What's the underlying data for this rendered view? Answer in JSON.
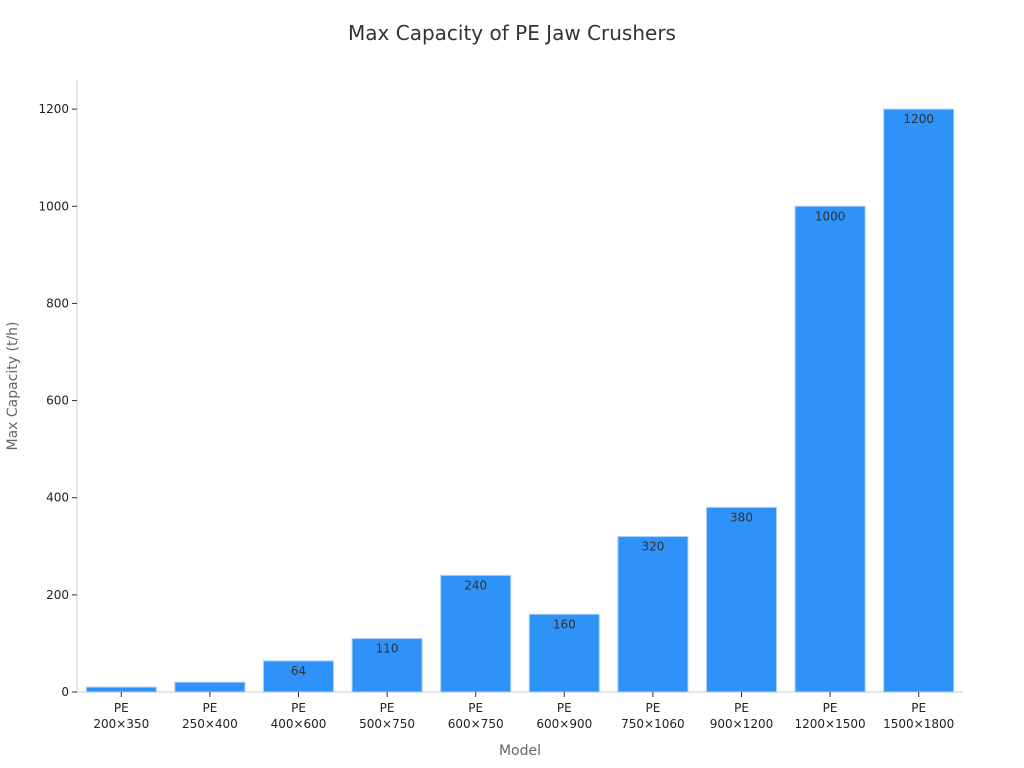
{
  "chart_data": {
    "type": "bar",
    "title": "Max Capacity of PE Jaw Crushers",
    "xlabel": "Model",
    "ylabel": "Max Capacity (t/h)",
    "categories": [
      [
        "PE",
        "200×350"
      ],
      [
        "PE",
        "250×400"
      ],
      [
        "PE",
        "400×600"
      ],
      [
        "PE",
        "500×750"
      ],
      [
        "PE",
        "600×750"
      ],
      [
        "PE",
        "600×900"
      ],
      [
        "PE",
        "750×1060"
      ],
      [
        "PE",
        "900×1200"
      ],
      [
        "PE",
        "1200×1500"
      ],
      [
        "PE",
        "1500×1800"
      ]
    ],
    "values": [
      10,
      20,
      64,
      110,
      240,
      160,
      320,
      380,
      1000,
      1200
    ],
    "data_labels": [
      "",
      "",
      "64",
      "110",
      "240",
      "160",
      "320",
      "380",
      "1000",
      "1200"
    ],
    "ylim": [
      0,
      1260
    ],
    "yticks": [
      0,
      200,
      400,
      600,
      800,
      1000,
      1200
    ],
    "grid": false,
    "bar_color": "#2e92f8",
    "bar_edge_color": "#a9cdf3"
  }
}
